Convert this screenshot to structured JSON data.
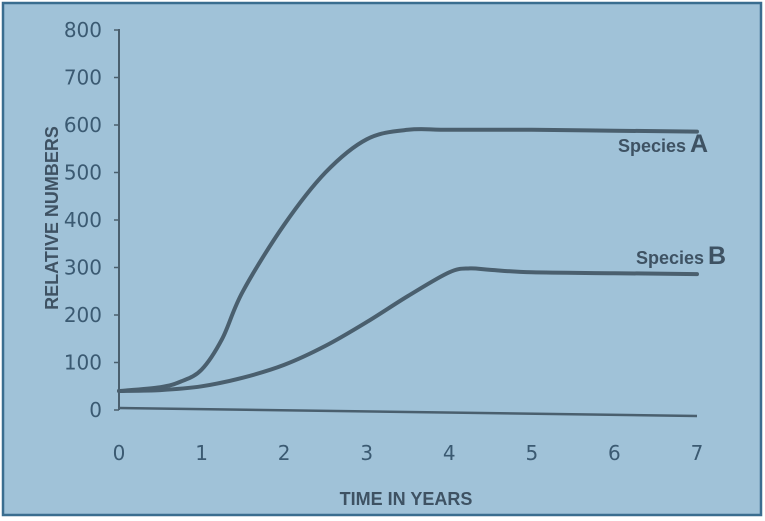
{
  "chart_data": {
    "type": "line",
    "title": "",
    "xlabel": "TIME IN YEARS",
    "ylabel": "RELATIVE NUMBERS",
    "xlim": [
      0,
      7
    ],
    "ylim": [
      0,
      800
    ],
    "x_ticks": [
      "0",
      "1",
      "2",
      "3",
      "4",
      "5",
      "6",
      "7"
    ],
    "y_ticks": [
      "0",
      "100",
      "200",
      "300",
      "400",
      "500",
      "600",
      "700",
      "800"
    ],
    "grid": false,
    "legend": "none",
    "series": [
      {
        "name": "Species A",
        "label_main": "Species",
        "label_letter": "A",
        "x": [
          0,
          0.5,
          0.75,
          1,
          1.25,
          1.5,
          2,
          2.5,
          3,
          3.5,
          4,
          5,
          6,
          7
        ],
        "values": [
          40,
          48,
          60,
          85,
          150,
          250,
          390,
          500,
          570,
          590,
          590,
          590,
          588,
          586
        ]
      },
      {
        "name": "Species B",
        "label_main": "Species",
        "label_letter": "B",
        "x": [
          0,
          0.5,
          1,
          1.5,
          2,
          2.5,
          3,
          3.5,
          4,
          4.25,
          4.5,
          5,
          6,
          7
        ],
        "values": [
          40,
          42,
          50,
          68,
          95,
          135,
          185,
          240,
          290,
          298,
          295,
          290,
          288,
          286
        ]
      }
    ],
    "colors": {
      "background": "#a0c2d8",
      "border": "#3a6d8f",
      "line": "#4a5f6e",
      "text": "#3b5a72",
      "axis_title": "#3e5263"
    }
  }
}
